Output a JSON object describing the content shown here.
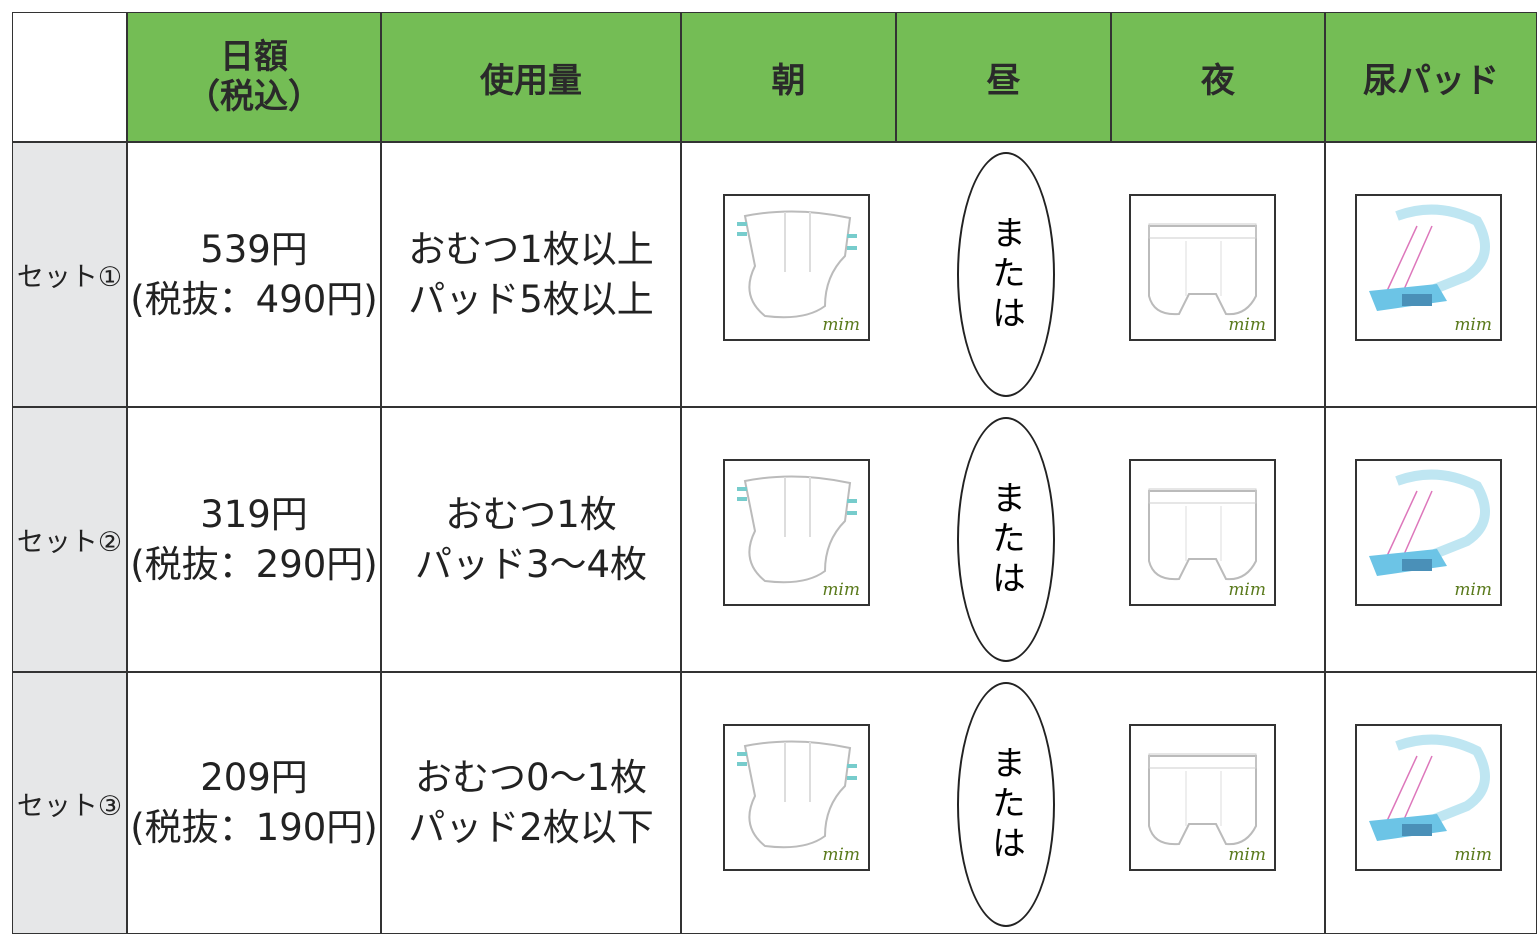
{
  "table": {
    "header": {
      "price": [
        "日額",
        "（税込）"
      ],
      "usage": "使用量",
      "morning": "朝",
      "noon": "昼",
      "night": "夜",
      "pad": "尿パッド"
    },
    "logo": "mim",
    "rows": [
      {
        "set": "セット①",
        "price": "539円",
        "price_excl": "(税抜：490円)",
        "usage": [
          "おむつ1枚以上",
          "パッド5枚以上"
        ],
        "or": "または"
      },
      {
        "set": "セット②",
        "price": "319円",
        "price_excl": "(税抜：290円)",
        "usage": [
          "おむつ1枚",
          "パッド3～4枚"
        ],
        "or": "または"
      },
      {
        "set": "セット③",
        "price": "209円",
        "price_excl": "(税抜：190円)",
        "usage": [
          "おむつ0～1枚",
          "パッド2枚以下"
        ],
        "or": "または"
      }
    ]
  }
}
